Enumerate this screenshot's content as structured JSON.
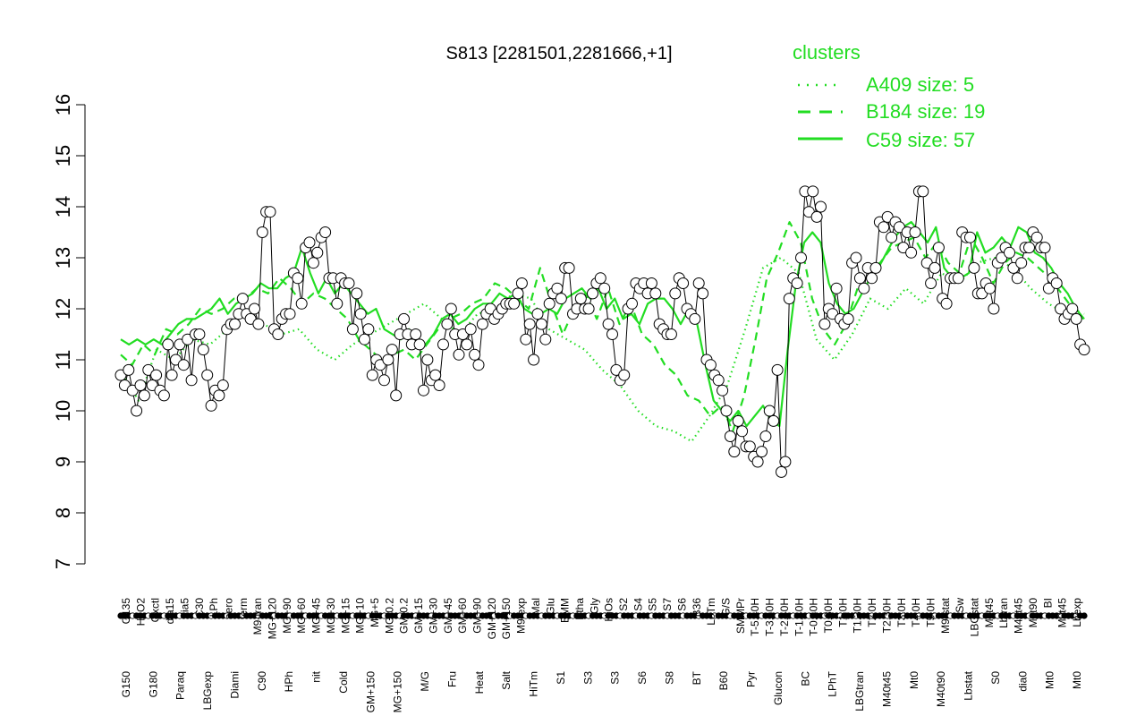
{
  "chart_data": {
    "type": "line",
    "title": "S813 [2281501,2281666,+1]",
    "xlabel": "",
    "ylabel": "",
    "ylim": [
      7,
      16
    ],
    "yticks": [
      7,
      8,
      9,
      10,
      11,
      12,
      13,
      14,
      15,
      16
    ],
    "grid": false,
    "legend": {
      "title": "clusters",
      "placement": "top-right",
      "entries": [
        {
          "label": "A409 size: 5",
          "style": "dotted"
        },
        {
          "label": "B184 size: 19",
          "style": "dashed"
        },
        {
          "label": "C59 size: 57",
          "style": "solid"
        }
      ]
    },
    "colors": {
      "series": "#22dd22",
      "points": "#000000"
    },
    "x_labels_upper": [
      "G135",
      "H2O2",
      "Oxctl",
      "dia15",
      "dia5",
      "C30",
      "LPh",
      "aero",
      "ferm",
      "M9-tran",
      "MG+120",
      "MG+90",
      "MG+60",
      "MG+45",
      "MG+30",
      "MG+15",
      "MG+10",
      "MG+5",
      "MG-0.2",
      "GM-0.2",
      "GM+15",
      "GM+30",
      "GM+45",
      "GM+60",
      "GM+90",
      "GM+120",
      "GM+150",
      "M9-exp",
      "Mal",
      "Glu",
      "BMM",
      "Etha",
      "Gly",
      "HiOs",
      "S2",
      "S4",
      "S5",
      "S7",
      "S6",
      "B36",
      "LoTm",
      "G/S",
      "SMMPr",
      "T-5.40H",
      "T-3.40H",
      "T-2.40H",
      "T-1.40H",
      "T-0.40H",
      "T0.30H",
      "T1.0H",
      "T1.30H",
      "T2.0H",
      "T2.30H",
      "T3.0H",
      "T4.0H",
      "T5.0H",
      "M9-stat",
      "Sw",
      "LBGstat",
      "M0t45",
      "Lbtran",
      "M40t45",
      "M0t90",
      "BI",
      "M0t45",
      "Lbexp"
    ],
    "x_labels_lower": [
      "G150",
      "G180",
      "Paraq",
      "LBGexp",
      "Diami",
      "C90",
      "HPh",
      "nit",
      "Cold",
      "GM+150",
      "MG+150",
      "M/G",
      "Fru",
      "Heat",
      "Salt",
      "HiTm",
      "S1",
      "S3",
      "S3",
      "S6",
      "S8",
      "BT",
      "B60",
      "Pyr",
      "Glucon",
      "BC",
      "LPhT",
      "LBGtran",
      "M40t45",
      "Mt0",
      "M40t90",
      "Lbstat",
      "S0",
      "dia0",
      "Mt0",
      "Mt0"
    ],
    "series": [
      {
        "style": "points",
        "values": [
          10.7,
          10.5,
          10.8,
          10.4,
          10.0,
          10.5,
          10.3,
          10.8,
          10.5,
          10.7,
          10.4,
          10.3,
          11.3,
          10.7,
          11.0,
          11.3,
          10.9,
          11.4,
          10.6,
          11.5,
          11.5,
          11.2,
          10.7,
          10.1,
          10.4,
          10.3,
          10.5,
          11.6,
          11.7,
          11.7,
          11.9,
          12.2,
          11.9,
          11.8,
          12.0,
          11.7,
          13.5,
          13.9,
          13.9,
          11.6,
          11.5,
          11.8,
          11.9,
          11.9,
          12.7,
          12.6,
          12.1,
          13.2,
          13.3,
          12.9,
          13.1,
          13.4,
          13.5,
          12.6,
          12.6,
          12.1,
          12.6,
          12.5,
          12.5,
          11.6,
          12.3,
          11.9,
          11.4,
          11.6,
          10.7,
          11.0,
          10.9,
          10.6,
          11.0,
          11.2,
          10.3,
          11.5,
          11.8,
          11.5,
          11.3,
          11.5,
          11.3,
          10.4,
          11.0,
          10.6,
          10.7,
          10.5,
          11.3,
          11.7,
          12.0,
          11.5,
          11.1,
          11.5,
          11.3,
          11.6,
          11.1,
          10.9,
          11.7,
          11.9,
          12.0,
          11.8,
          11.9,
          12.0,
          12.1,
          12.1,
          12.1,
          12.3,
          12.5,
          11.4,
          11.7,
          11.0,
          11.9,
          11.7,
          11.4,
          12.1,
          12.3,
          12.4,
          12.2,
          12.8,
          12.8,
          11.9,
          12.0,
          12.2,
          12.0,
          12.0,
          12.3,
          12.5,
          12.6,
          12.4,
          11.7,
          11.5,
          10.8,
          10.6,
          10.7,
          12.0,
          12.1,
          12.5,
          12.4,
          12.5,
          12.3,
          12.5,
          12.3,
          11.7,
          11.6,
          11.5,
          11.5,
          12.3,
          12.6,
          12.5,
          12.0,
          11.9,
          11.8,
          12.5,
          12.3,
          11.0,
          10.9,
          10.7,
          10.6,
          10.4,
          10.0,
          9.5,
          9.2,
          9.8,
          9.6,
          9.3,
          9.3,
          9.1,
          9.0,
          9.2,
          9.5,
          10.0,
          9.8,
          10.8,
          8.8,
          9.0,
          12.2,
          12.6,
          12.5,
          13.0,
          14.3,
          13.9,
          14.3,
          13.8,
          14.0,
          11.7,
          12.0,
          11.9,
          12.4,
          11.8,
          11.7,
          11.8,
          12.9,
          13.0,
          12.6,
          12.4,
          12.8,
          12.6,
          12.8,
          13.7,
          13.6,
          13.8,
          13.4,
          13.7,
          13.6,
          13.2,
          13.5,
          13.1,
          13.5,
          14.3,
          14.3,
          12.9,
          12.5,
          12.8,
          13.2,
          12.2,
          12.1,
          12.6,
          12.6,
          12.6,
          13.5,
          13.4,
          13.4,
          12.8,
          12.3,
          12.3,
          12.5,
          12.4,
          12.0,
          12.9,
          13.0,
          13.2,
          13.1,
          12.8,
          12.6,
          12.9,
          13.2,
          13.2,
          13.5,
          13.4,
          13.2,
          13.2,
          12.4,
          12.6,
          12.5,
          12.0,
          11.8,
          11.9,
          12.0,
          11.8,
          11.3,
          11.2
        ]
      },
      {
        "name": "C59",
        "style": "solid",
        "values": [
          11.4,
          11.3,
          11.4,
          11.3,
          11.4,
          11.3,
          11.5,
          11.7,
          11.8,
          11.8,
          11.9,
          12.0,
          12.2,
          11.9,
          12.1,
          12.2,
          12.3,
          12.5,
          12.4,
          12.4,
          12.6,
          12.7,
          13.2,
          12.7,
          12.3,
          12.6,
          12.3,
          12.5,
          12.3,
          12.1,
          11.9,
          12.0,
          11.6,
          11.5,
          11.4,
          11.6,
          11.4,
          11.3,
          11.5,
          11.8,
          11.9,
          11.7,
          11.8,
          12.0,
          12.1,
          12.1,
          12.3,
          12.2,
          12.3,
          12.0,
          11.9,
          11.9,
          12.0,
          11.9,
          12.2,
          12.3,
          12.4,
          12.2,
          12.4,
          12.0,
          12.2,
          11.8,
          11.9,
          11.7,
          12.1,
          12.2,
          12.2,
          12.0,
          11.7,
          12.0,
          11.7,
          10.9,
          10.2,
          10.0,
          9.8,
          10.0,
          9.7,
          9.9,
          10.1,
          9.8,
          9.7,
          11.2,
          12.5,
          13.3,
          13.5,
          13.3,
          12.5,
          12.1,
          11.9,
          12.0,
          12.3,
          12.6,
          12.8,
          13.1,
          13.4,
          13.6,
          13.7,
          13.5,
          13.3,
          13.6,
          12.8,
          12.6,
          12.6,
          12.7,
          13.5,
          13.1,
          13.2,
          13.4,
          13.2,
          13.6,
          13.5,
          13.1,
          13.0,
          12.8,
          12.5,
          12.3,
          12.0,
          11.8
        ]
      },
      {
        "name": "B184",
        "style": "dashed",
        "values": [
          11.1,
          10.9,
          11.3,
          11.1,
          11.6,
          11.5,
          11.7,
          12.0,
          11.9,
          12.0,
          12.2,
          12.2,
          12.4,
          12.3,
          12.6,
          12.4,
          12.1,
          12.3,
          12.2,
          12.0,
          11.8,
          11.4,
          11.2,
          11.0,
          11.1,
          11.2,
          11.0,
          11.3,
          11.6,
          11.8,
          11.9,
          12.1,
          12.2,
          12.5,
          12.4,
          12.2,
          12.0,
          12.8,
          12.1,
          11.5,
          12.0,
          12.3,
          11.8,
          12.4,
          11.7,
          12.1,
          11.5,
          11.3,
          10.9,
          10.7,
          10.3,
          10.2,
          9.9,
          10.1,
          9.6,
          10.3,
          11.4,
          12.6,
          13.1,
          13.7,
          13.3,
          12.2,
          11.6,
          11.3,
          11.7,
          12.4,
          12.8,
          12.9,
          13.2,
          13.3,
          13.4,
          13.0,
          13.3,
          12.9,
          12.7,
          13.4,
          13.0,
          12.5,
          12.9,
          13.1,
          13.0,
          12.8,
          12.6,
          12.3,
          12.0,
          11.9
        ]
      },
      {
        "name": "A409",
        "style": "dotted",
        "values": [
          10.8,
          10.2,
          11.2,
          11.0,
          11.4,
          11.3,
          11.6,
          11.9,
          11.7,
          11.5,
          11.6,
          11.2,
          11.0,
          11.3,
          11.5,
          11.7,
          11.9,
          12.1,
          11.8,
          11.5,
          11.9,
          12.0,
          12.3,
          12.2,
          11.6,
          11.4,
          11.2,
          10.8,
          10.5,
          10.0,
          9.7,
          9.6,
          9.4,
          9.9,
          10.5,
          11.6,
          12.8,
          13.0,
          12.7,
          11.4,
          11.0,
          11.5,
          12.2,
          12.0,
          12.4,
          12.1,
          12.7,
          12.5,
          12.9,
          13.0,
          12.8,
          12.4,
          12.1,
          11.9,
          11.8
        ]
      }
    ]
  }
}
